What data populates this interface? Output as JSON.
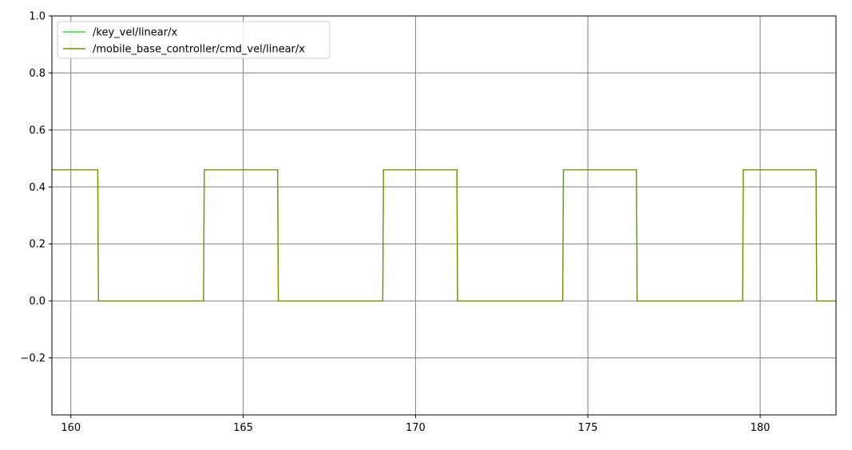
{
  "chart_data": {
    "type": "line",
    "title": "",
    "xlabel": "",
    "ylabel": "",
    "xlim": [
      159.45,
      182.2
    ],
    "ylim": [
      -0.4,
      1.0
    ],
    "grid": true,
    "legend_position": "top-left",
    "x_ticks": [
      160,
      165,
      170,
      175,
      180
    ],
    "y_ticks": [
      -0.2,
      0.0,
      0.2,
      0.4,
      0.6,
      0.8,
      1.0
    ],
    "x_tick_labels": [
      "160",
      "165",
      "170",
      "175",
      "180"
    ],
    "y_tick_labels": [
      "−0.2",
      "0.0",
      "0.2",
      "0.4",
      "0.6",
      "0.8",
      "1.0"
    ],
    "series": [
      {
        "name": "/key_vel/linear/x",
        "color": "#2ee02e",
        "x": [
          159.45,
          160.78,
          160.8,
          163.85,
          163.87,
          166.0,
          166.02,
          169.05,
          169.07,
          171.2,
          171.22,
          174.27,
          174.29,
          176.41,
          176.43,
          179.49,
          179.51,
          181.62,
          181.64,
          182.2
        ],
        "y": [
          0.46,
          0.46,
          0.0,
          0.0,
          0.46,
          0.46,
          0.0,
          0.0,
          0.46,
          0.46,
          0.0,
          0.0,
          0.46,
          0.46,
          0.0,
          0.0,
          0.46,
          0.46,
          0.0,
          0.0
        ]
      },
      {
        "name": "/mobile_base_controller/cmd_vel/linear/x",
        "color": "#7a8c00",
        "x": [
          159.45,
          160.78,
          160.8,
          163.85,
          163.87,
          166.0,
          166.02,
          169.05,
          169.07,
          171.2,
          171.22,
          174.27,
          174.29,
          176.41,
          176.43,
          179.49,
          179.51,
          181.62,
          181.64,
          182.2
        ],
        "y": [
          0.46,
          0.46,
          0.0,
          0.0,
          0.46,
          0.46,
          0.0,
          0.0,
          0.46,
          0.46,
          0.0,
          0.0,
          0.46,
          0.46,
          0.0,
          0.0,
          0.46,
          0.46,
          0.0,
          0.0
        ]
      }
    ]
  }
}
